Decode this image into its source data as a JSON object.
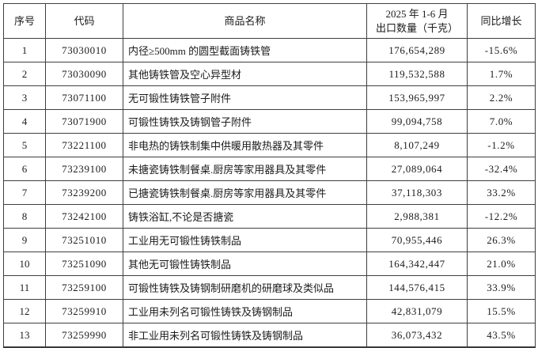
{
  "table": {
    "headers": {
      "col_index": "序号",
      "col_code": "代码",
      "col_name": "商品名称",
      "col_qty_line1": "2025 年 1-6 月",
      "col_qty_line2": "出口数量（千克）",
      "col_growth": "同比增长"
    },
    "rows": [
      {
        "index": "1",
        "code": "73030010",
        "name": "内径≥500mm 的圆型截面铸铁管",
        "qty": "176,654,289",
        "growth": "-15.6%"
      },
      {
        "index": "2",
        "code": "73030090",
        "name": "其他铸铁管及空心异型材",
        "qty": "119,532,588",
        "growth": "1.7%"
      },
      {
        "index": "3",
        "code": "73071100",
        "name": "无可锻性铸铁管子附件",
        "qty": "153,965,997",
        "growth": "2.2%"
      },
      {
        "index": "4",
        "code": "73071900",
        "name": "可锻性铸铁及铸钢管子附件",
        "qty": "99,094,758",
        "growth": "7.0%"
      },
      {
        "index": "5",
        "code": "73221100",
        "name": "非电热的铸铁制集中供暖用散热器及其零件",
        "qty": "8,107,249",
        "growth": "-1.2%"
      },
      {
        "index": "6",
        "code": "73239100",
        "name": "未搪瓷铸铁制餐桌.厨房等家用器具及其零件",
        "qty": "27,089,064",
        "growth": "-32.4%"
      },
      {
        "index": "7",
        "code": "73239200",
        "name": "已搪瓷铸铁制餐桌.厨房等家用器具及其零件",
        "qty": "37,118,303",
        "growth": "33.2%"
      },
      {
        "index": "8",
        "code": "73242100",
        "name": "铸铁浴缸,不论是否搪瓷",
        "qty": "2,988,381",
        "growth": "-12.2%"
      },
      {
        "index": "9",
        "code": "73251010",
        "name": "工业用无可锻性铸铁制品",
        "qty": "70,955,446",
        "growth": "26.3%"
      },
      {
        "index": "10",
        "code": "73251090",
        "name": "其他无可锻性铸铁制品",
        "qty": "164,342,447",
        "growth": "21.0%"
      },
      {
        "index": "11",
        "code": "73259100",
        "name": "可锻性铸铁及铸钢制研磨机的研磨球及类似品",
        "qty": "144,576,415",
        "growth": "33.9%"
      },
      {
        "index": "12",
        "code": "73259910",
        "name": "工业用未列名可锻性铸铁及铸钢制品",
        "qty": "42,831,079",
        "growth": "15.5%"
      },
      {
        "index": "13",
        "code": "73259990",
        "name": "非工业用未列名可锻性铸铁及铸钢制品",
        "qty": "36,073,432",
        "growth": "43.5%"
      }
    ]
  },
  "colors": {
    "border": "#3f3f3f",
    "text": "#1c1c1c",
    "background": "#ffffff"
  }
}
